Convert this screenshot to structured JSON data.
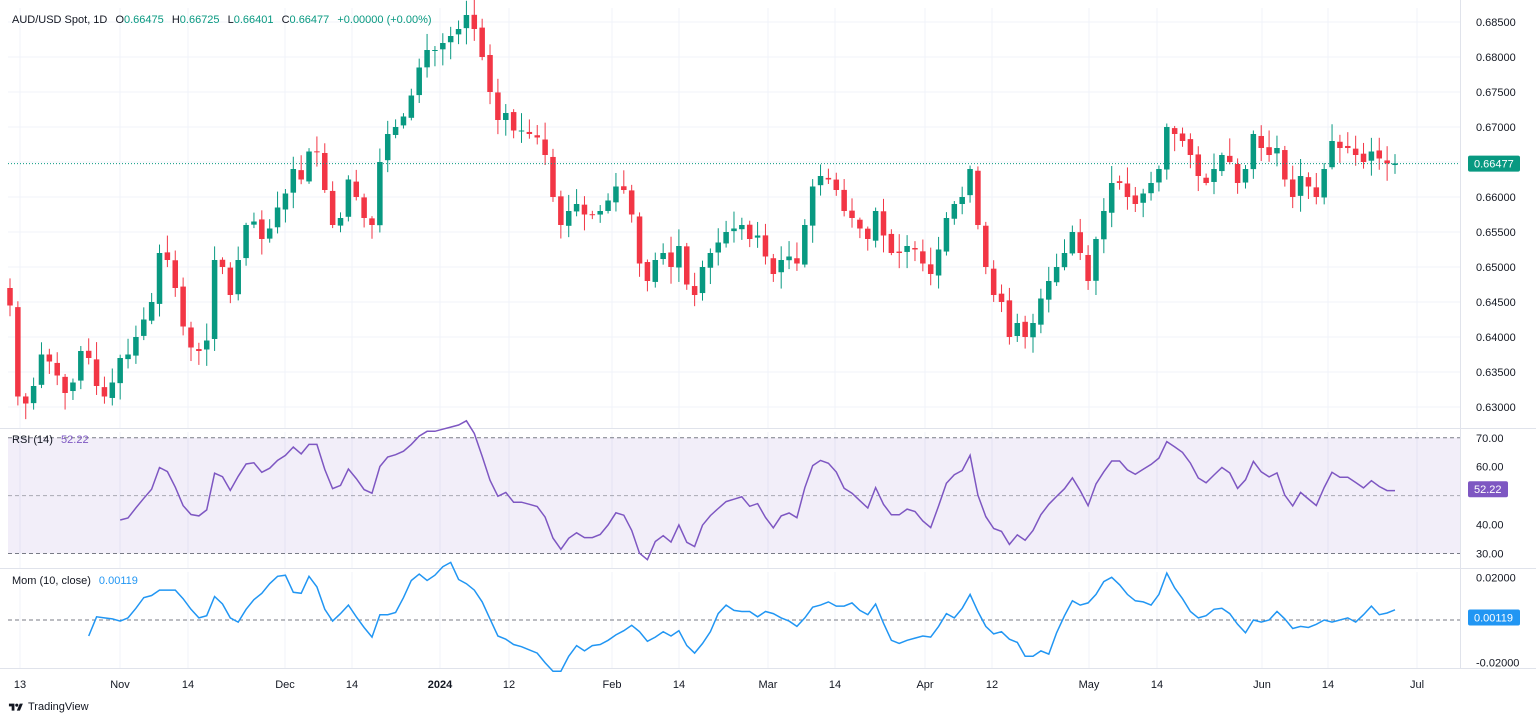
{
  "header": {
    "symbol": "AUD/USD Spot, 1D",
    "open_label": "O",
    "open": "0.66475",
    "high_label": "H",
    "high": "0.66725",
    "low_label": "L",
    "low": "0.66401",
    "close_label": "C",
    "close": "0.66477",
    "change": "+0.00000 (+0.00%)"
  },
  "rsi": {
    "label": "RSI (14)",
    "value": "52.22"
  },
  "momentum": {
    "label": "Mom (10, close)",
    "value": "0.00119"
  },
  "footer": {
    "brand": "TradingView"
  },
  "colors": {
    "up": "#089981",
    "down": "#f23645",
    "rsi_line": "#7e57c2",
    "rsi_band": "#7e57c2",
    "mom_line": "#2196f3",
    "price_tag": "#089981",
    "grid": "#f0f3fa",
    "axis_text": "#131722"
  },
  "chart_data": [
    {
      "type": "candlestick",
      "title": "AUD/USD Spot, 1D",
      "ylim": [
        0.627,
        0.687
      ],
      "yticks": [
        "0.68500",
        "0.68000",
        "0.67500",
        "0.67000",
        "0.66500",
        "0.66000",
        "0.65500",
        "0.65000",
        "0.64500",
        "0.64000",
        "0.63500",
        "0.63000"
      ],
      "last_price": "0.66477",
      "x_labels": [
        "13",
        "Nov",
        "14",
        "Dec",
        "14",
        "2024",
        "12",
        "Feb",
        "14",
        "Mar",
        "14",
        "Apr",
        "12",
        "May",
        "14",
        "Jun",
        "14",
        "Jul"
      ],
      "close": [
        0.6445,
        0.6315,
        0.6305,
        0.633,
        0.6375,
        0.6365,
        0.6345,
        0.632,
        0.6335,
        0.638,
        0.637,
        0.633,
        0.6315,
        0.6335,
        0.637,
        0.6375,
        0.64,
        0.6425,
        0.645,
        0.652,
        0.651,
        0.647,
        0.6415,
        0.6385,
        0.638,
        0.6395,
        0.651,
        0.65,
        0.646,
        0.651,
        0.656,
        0.6565,
        0.654,
        0.6555,
        0.6585,
        0.6605,
        0.664,
        0.6625,
        0.6665,
        0.6665,
        0.661,
        0.656,
        0.657,
        0.6625,
        0.66,
        0.657,
        0.656,
        0.665,
        0.669,
        0.67,
        0.6715,
        0.6745,
        0.6785,
        0.681,
        0.681,
        0.682,
        0.683,
        0.684,
        0.686,
        0.684,
        0.68,
        0.675,
        0.671,
        0.672,
        0.6695,
        0.6695,
        0.669,
        0.6685,
        0.666,
        0.66,
        0.656,
        0.658,
        0.659,
        0.6575,
        0.6575,
        0.658,
        0.6595,
        0.6615,
        0.661,
        0.6575,
        0.6505,
        0.648,
        0.651,
        0.652,
        0.65,
        0.653,
        0.6475,
        0.646,
        0.65,
        0.652,
        0.6535,
        0.655,
        0.6555,
        0.656,
        0.654,
        0.6545,
        0.6515,
        0.649,
        0.651,
        0.6515,
        0.6505,
        0.656,
        0.6615,
        0.663,
        0.6625,
        0.661,
        0.658,
        0.657,
        0.6555,
        0.654,
        0.658,
        0.6545,
        0.652,
        0.652,
        0.653,
        0.6525,
        0.6505,
        0.649,
        0.6525,
        0.657,
        0.659,
        0.66,
        0.664,
        0.656,
        0.65,
        0.646,
        0.645,
        0.64,
        0.642,
        0.64,
        0.642,
        0.6455,
        0.648,
        0.65,
        0.652,
        0.655,
        0.652,
        0.648,
        0.654,
        0.658,
        0.662,
        0.662,
        0.66,
        0.659,
        0.6605,
        0.662,
        0.664,
        0.67,
        0.669,
        0.668,
        0.666,
        0.663,
        0.662,
        0.664,
        0.666,
        0.665,
        0.662,
        0.664,
        0.669,
        0.667,
        0.666,
        0.667,
        0.6625,
        0.66,
        0.663,
        0.6615,
        0.66,
        0.664,
        0.668,
        0.667,
        0.667,
        0.666,
        0.665,
        0.6665,
        0.6655,
        0.6648,
        0.6648
      ],
      "bars_description": "daily OHLC candles from mid-Oct 2023 to late Jun 2024"
    },
    {
      "type": "line",
      "title": "RSI (14)",
      "ylim": [
        25,
        72
      ],
      "yticks": [
        "70.00",
        "60.00",
        "40.00",
        "30.00"
      ],
      "bands": [
        30,
        70
      ],
      "midline": 50,
      "last_value": "52.22"
    },
    {
      "type": "line",
      "title": "Mom (10, close)",
      "ylim": [
        -0.0225,
        0.0225
      ],
      "yticks": [
        "0.02000",
        "-0.02000"
      ],
      "zero_line": 0,
      "last_value": "0.00119"
    }
  ]
}
